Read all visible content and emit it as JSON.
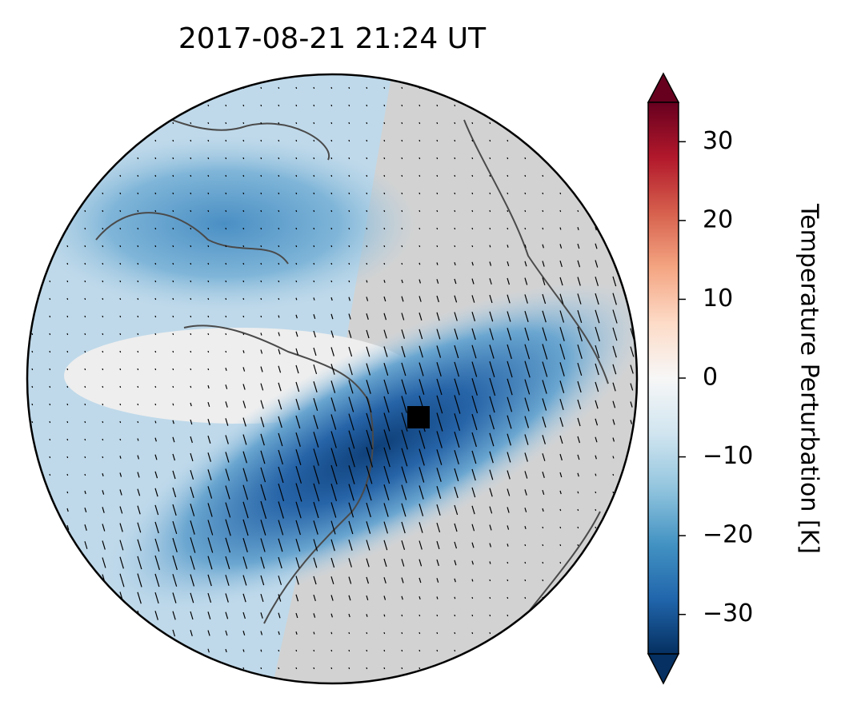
{
  "chart_data": {
    "type": "colormap-globe",
    "title": "2017-08-21  21:24 UT",
    "colorbar_label": "Temperature Perturbation [K]",
    "ylim": [
      -35,
      35
    ],
    "yticks": [
      {
        "value": -30,
        "label": "−30"
      },
      {
        "value": -20,
        "label": "−20"
      },
      {
        "value": -10,
        "label": "−10"
      },
      0,
      10,
      20,
      30
    ],
    "colormap": [
      "#053061",
      "#2166ac",
      "#4393c3",
      "#92c5de",
      "#d1e5f0",
      "#f7f7f7",
      "#fddbc7",
      "#f4a582",
      "#d6604d",
      "#b2182b",
      "#67001f"
    ]
  }
}
